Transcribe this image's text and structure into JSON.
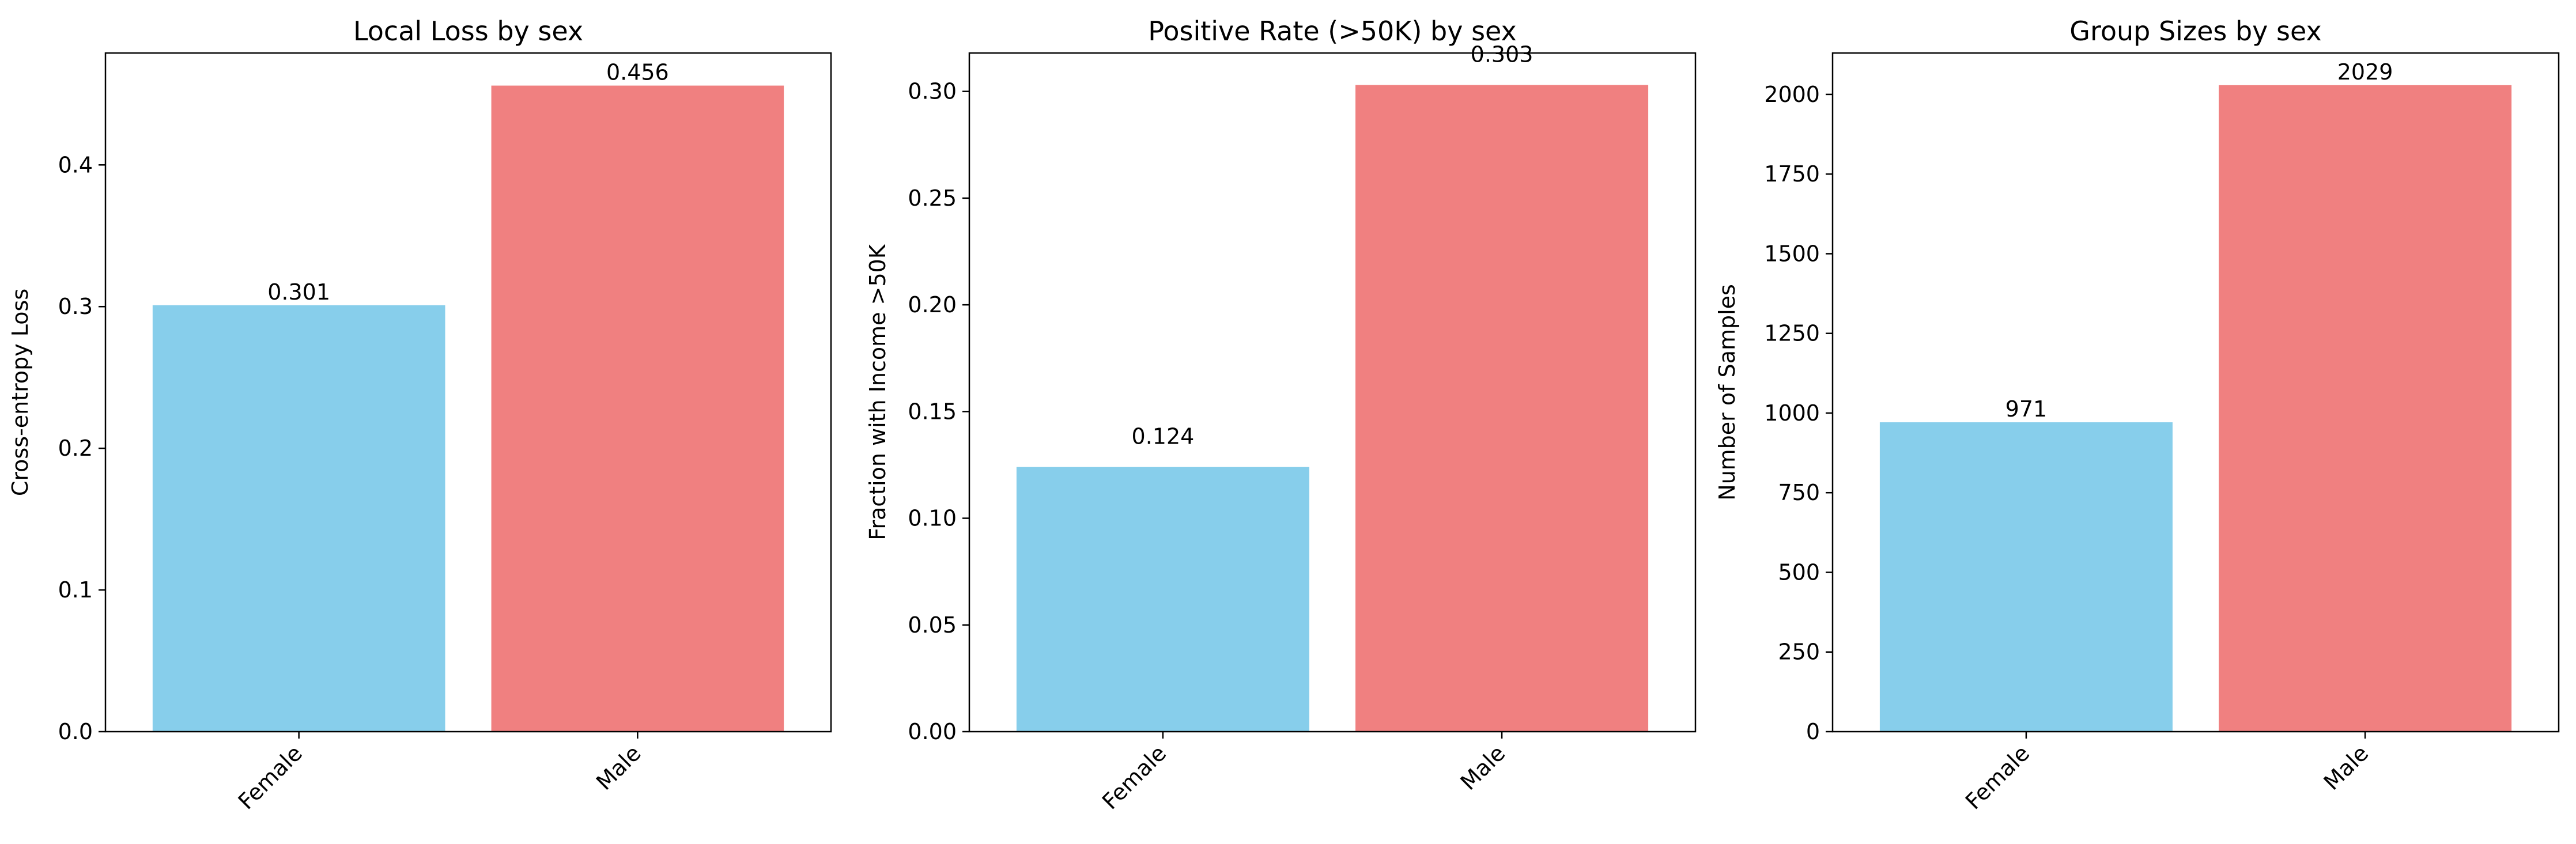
{
  "chart_data": [
    {
      "type": "bar",
      "title": "Local Loss by sex",
      "xlabel": "",
      "ylabel": "Cross-entropy Loss",
      "categories": [
        "Female",
        "Male"
      ],
      "values": [
        0.301,
        0.456
      ],
      "value_labels": [
        "0.301",
        "0.456"
      ],
      "colors": [
        "#87CEEB",
        "#F08080"
      ],
      "ylim": [
        0,
        0.479
      ],
      "yticks": [
        0.0,
        0.1,
        0.2,
        0.3,
        0.4
      ],
      "ytick_labels": [
        "0.0",
        "0.1",
        "0.2",
        "0.3",
        "0.4"
      ],
      "xtick_rotation": 45,
      "grid": false,
      "legend": "none"
    },
    {
      "type": "bar",
      "title": "Positive Rate (>50K) by sex",
      "xlabel": "",
      "ylabel": "Fraction with Income >50K",
      "categories": [
        "Female",
        "Male"
      ],
      "values": [
        0.124,
        0.303
      ],
      "value_labels": [
        "0.124",
        "0.303"
      ],
      "colors": [
        "#87CEEB",
        "#F08080"
      ],
      "ylim": [
        0,
        0.318
      ],
      "yticks": [
        0.0,
        0.05,
        0.1,
        0.15,
        0.2,
        0.25,
        0.3
      ],
      "ytick_labels": [
        "0.00",
        "0.05",
        "0.10",
        "0.15",
        "0.20",
        "0.25",
        "0.30"
      ],
      "xtick_rotation": 45,
      "grid": false,
      "legend": "none"
    },
    {
      "type": "bar",
      "title": "Group Sizes by sex",
      "xlabel": "",
      "ylabel": "Number of Samples",
      "categories": [
        "Female",
        "Male"
      ],
      "values": [
        971,
        2029
      ],
      "value_labels": [
        "971",
        "2029"
      ],
      "colors": [
        "#87CEEB",
        "#F08080"
      ],
      "ylim": [
        0,
        2130
      ],
      "yticks": [
        0,
        250,
        500,
        750,
        1000,
        1250,
        1500,
        1750,
        2000
      ],
      "ytick_labels": [
        "0",
        "250",
        "500",
        "750",
        "1000",
        "1250",
        "1500",
        "1750",
        "2000"
      ],
      "xtick_rotation": 45,
      "grid": false,
      "legend": "none"
    }
  ]
}
